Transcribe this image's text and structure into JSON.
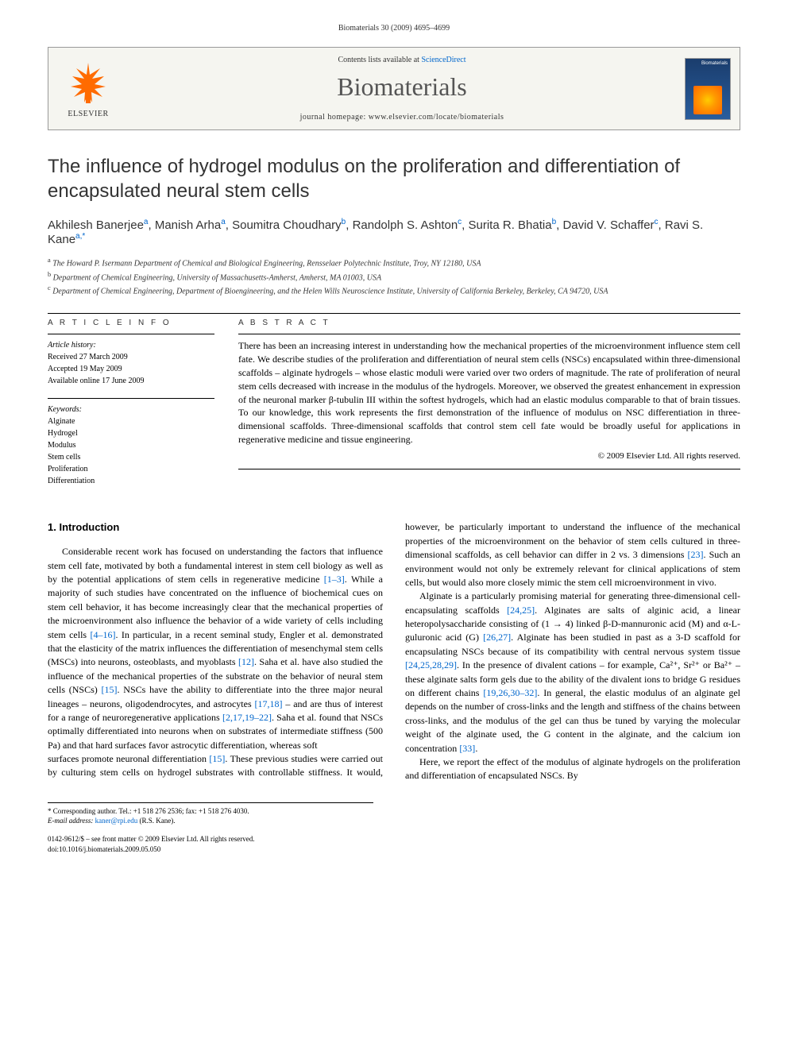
{
  "running_head": "Biomaterials 30 (2009) 4695–4699",
  "header": {
    "contents_prefix": "Contents lists available at ",
    "contents_link": "ScienceDirect",
    "journal": "Biomaterials",
    "homepage_label": "journal homepage: www.elsevier.com/locate/biomaterials",
    "publisher": "ELSEVIER",
    "cover_label": "Biomaterials"
  },
  "title": "The influence of hydrogel modulus on the proliferation and differentiation of encapsulated neural stem cells",
  "authors_html": "Akhilesh Banerjee<sup>a</sup>, Manish Arha<sup>a</sup>, Soumitra Choudhary<sup>b</sup>, Randolph S. Ashton<sup>c</sup>, Surita R. Bhatia<sup>b</sup>, David V. Schaffer<sup>c</sup>, Ravi S. Kane<sup>a,*</sup>",
  "affiliations": {
    "a": "The Howard P. Isermann Department of Chemical and Biological Engineering, Rensselaer Polytechnic Institute, Troy, NY 12180, USA",
    "b": "Department of Chemical Engineering, University of Massachusetts-Amherst, Amherst, MA 01003, USA",
    "c": "Department of Chemical Engineering, Department of Bioengineering, and the Helen Wills Neuroscience Institute, University of California Berkeley, Berkeley, CA 94720, USA"
  },
  "article_info": {
    "heading": "A R T I C L E   I N F O",
    "history_label": "Article history:",
    "received": "Received 27 March 2009",
    "accepted": "Accepted 19 May 2009",
    "online": "Available online 17 June 2009",
    "keywords_label": "Keywords:",
    "keywords": [
      "Alginate",
      "Hydrogel",
      "Modulus",
      "Stem cells",
      "Proliferation",
      "Differentiation"
    ]
  },
  "abstract": {
    "heading": "A B S T R A C T",
    "text": "There has been an increasing interest in understanding how the mechanical properties of the microenvironment influence stem cell fate. We describe studies of the proliferation and differentiation of neural stem cells (NSCs) encapsulated within three-dimensional scaffolds – alginate hydrogels – whose elastic moduli were varied over two orders of magnitude. The rate of proliferation of neural stem cells decreased with increase in the modulus of the hydrogels. Moreover, we observed the greatest enhancement in expression of the neuronal marker β-tubulin III within the softest hydrogels, which had an elastic modulus comparable to that of brain tissues. To our knowledge, this work represents the first demonstration of the influence of modulus on NSC differentiation in three-dimensional scaffolds. Three-dimensional scaffolds that control stem cell fate would be broadly useful for applications in regenerative medicine and tissue engineering.",
    "copyright": "© 2009 Elsevier Ltd. All rights reserved."
  },
  "intro_heading": "1. Introduction",
  "para1": "Considerable recent work has focused on understanding the factors that influence stem cell fate, motivated by both a fundamental interest in stem cell biology as well as by the potential applications of stem cells in regenerative medicine [1–3]. While a majority of such studies have concentrated on the influence of biochemical cues on stem cell behavior, it has become increasingly clear that the mechanical properties of the microenvironment also influence the behavior of a wide variety of cells including stem cells [4–16]. In particular, in a recent seminal study, Engler et al. demonstrated that the elasticity of the matrix influences the differentiation of mesenchymal stem cells (MSCs) into neurons, osteoblasts, and myoblasts [12]. Saha et al. have also studied the influence of the mechanical properties of the substrate on the behavior of neural stem cells (NSCs) [15]. NSCs have the ability to differentiate into the three major neural lineages – neurons, oligodendrocytes, and astrocytes [17,18] – and are thus of interest for a range of neuroregenerative applications [2,17,19–22]. Saha et al. found that NSCs optimally differentiated into neurons when on substrates of intermediate stiffness (500 Pa) and that hard surfaces favor astrocytic differentiation, whereas soft",
  "para2": "surfaces promote neuronal differentiation [15]. These previous studies were carried out by culturing stem cells on hydrogel substrates with controllable stiffness. It would, however, be particularly important to understand the influence of the mechanical properties of the microenvironment on the behavior of stem cells cultured in three-dimensional scaffolds, as cell behavior can differ in 2 vs. 3 dimensions [23]. Such an environment would not only be extremely relevant for clinical applications of stem cells, but would also more closely mimic the stem cell microenvironment in vivo.",
  "para3": "Alginate is a particularly promising material for generating three-dimensional cell-encapsulating scaffolds [24,25]. Alginates are salts of alginic acid, a linear heteropolysaccharide consisting of (1 → 4) linked β-D-mannuronic acid (M) and α-L-guluronic acid (G) [26,27]. Alginate has been studied in past as a 3-D scaffold for encapsulating NSCs because of its compatibility with central nervous system tissue [24,25,28,29]. In the presence of divalent cations – for example, Ca²⁺, Sr²⁺ or Ba²⁺ – these alginate salts form gels due to the ability of the divalent ions to bridge G residues on different chains [19,26,30–32]. In general, the elastic modulus of an alginate gel depends on the number of cross-links and the length and stiffness of the chains between cross-links, and the modulus of the gel can thus be tuned by varying the molecular weight of the alginate used, the G content in the alginate, and the calcium ion concentration [33].",
  "para4": "Here, we report the effect of the modulus of alginate hydrogels on the proliferation and differentiation of encapsulated NSCs. By",
  "footer": {
    "corr": "* Corresponding author. Tel.: +1 518 276 2536; fax: +1 518 276 4030.",
    "email_label": "E-mail address:",
    "email": "kaner@rpi.edu",
    "email_owner": "(R.S. Kane).",
    "issn": "0142-9612/$ – see front matter © 2009 Elsevier Ltd. All rights reserved.",
    "doi": "doi:10.1016/j.biomaterials.2009.05.050"
  },
  "colors": {
    "link": "#0066cc",
    "elsevier_orange": "#ff6b00",
    "text": "#000000",
    "header_bg": "#f5f5f0"
  }
}
